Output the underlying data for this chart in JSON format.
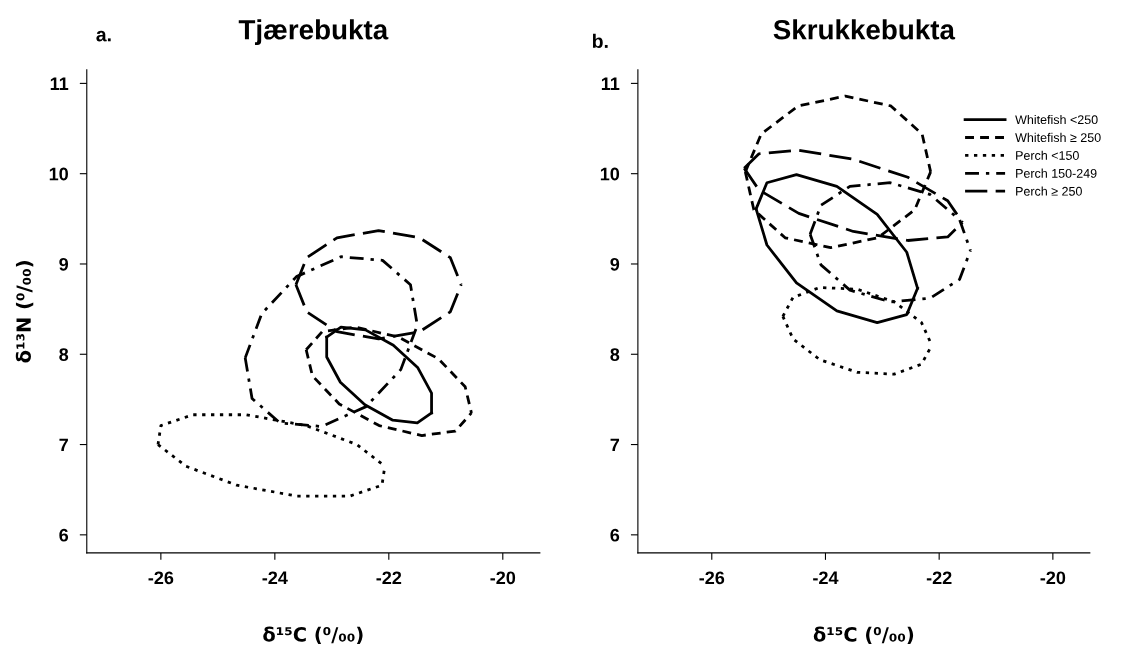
{
  "chart_data": [
    {
      "type": "line",
      "title": "Tjærebukta",
      "xlabel": "δ¹⁵C (⁰/₀₀)",
      "ylabel": "δ¹³N (⁰/₀₀)",
      "annotations": [
        "a."
      ],
      "xlim": [
        -27.3,
        -19.35
      ],
      "ylim": [
        5.8,
        11.15
      ],
      "xticks": [
        -26,
        -24,
        -22,
        -20
      ],
      "yticks": [
        6,
        7,
        8,
        9,
        10,
        11
      ],
      "grid": false,
      "legend": false,
      "marker": "none",
      "series": [
        {
          "color": "#000000",
          "line_style": "solid",
          "x": [
            -23.09,
            -22.84,
            -22.41,
            -21.92,
            -21.49,
            -21.25,
            -21.25
          ],
          "values": [
            8.19,
            8.3,
            8.27,
            8.1,
            7.85,
            7.57,
            7.35
          ]
        },
        {
          "color": "#000000",
          "line_style": "solid",
          "x": [
            -23.09,
            -23.09,
            -22.85,
            -22.42,
            -21.93,
            -21.5,
            -21.25
          ],
          "values": [
            8.19,
            7.97,
            7.69,
            7.44,
            7.27,
            7.24,
            7.35
          ]
        },
        {
          "color": "#000000",
          "line_style": "dashed",
          "x": [
            -23.45,
            -23.17,
            -22.58,
            -21.83,
            -21.13,
            -20.66,
            -20.55
          ],
          "values": [
            8.05,
            8.25,
            8.3,
            8.19,
            7.95,
            7.64,
            7.35
          ]
        },
        {
          "color": "#000000",
          "line_style": "dashed",
          "x": [
            -23.45,
            -23.34,
            -22.87,
            -22.17,
            -21.42,
            -20.83,
            -20.55
          ],
          "values": [
            8.05,
            7.76,
            7.45,
            7.21,
            7.1,
            7.15,
            7.35
          ]
        },
        {
          "color": "#000000",
          "line_style": "dotted",
          "x": [
            -26.05,
            -26.0,
            -25.44,
            -24.5,
            -23.45,
            -22.56,
            -22.07
          ],
          "values": [
            7.0,
            7.21,
            7.33,
            7.33,
            7.21,
            7.0,
            6.76
          ]
        },
        {
          "color": "#000000",
          "line_style": "dotted",
          "x": [
            -26.05,
            -25.56,
            -24.67,
            -23.62,
            -22.68,
            -22.12,
            -22.07
          ],
          "values": [
            7.0,
            6.76,
            6.55,
            6.43,
            6.43,
            6.55,
            6.76
          ]
        },
        {
          "color": "#000000",
          "line_style": "dashdot",
          "x": [
            -24.52,
            -24.23,
            -23.62,
            -22.84,
            -22.11,
            -21.62,
            -21.5
          ],
          "values": [
            7.96,
            8.45,
            8.86,
            9.08,
            9.04,
            8.77,
            8.32
          ]
        },
        {
          "color": "#000000",
          "line_style": "dashdot",
          "x": [
            -24.52,
            -24.4,
            -23.91,
            -23.18,
            -22.4,
            -21.79,
            -21.5
          ],
          "values": [
            7.96,
            7.51,
            7.24,
            7.2,
            7.42,
            7.83,
            8.32
          ]
        },
        {
          "color": "#000000",
          "line_style": "longdash",
          "x": [
            -23.63,
            -23.44,
            -22.91,
            -22.18,
            -21.46,
            -20.92,
            -20.73
          ],
          "values": [
            8.77,
            9.07,
            9.29,
            9.37,
            9.29,
            9.07,
            8.77
          ]
        },
        {
          "color": "#000000",
          "line_style": "longdash",
          "x": [
            -23.63,
            -23.44,
            -22.91,
            -22.18,
            -21.46,
            -20.92,
            -20.73
          ],
          "values": [
            8.77,
            8.47,
            8.25,
            8.17,
            8.25,
            8.47,
            8.77
          ]
        }
      ]
    },
    {
      "type": "line",
      "title": "Skrukkebukta",
      "xlabel": "δ¹⁵C (⁰/₀₀)",
      "annotations": [
        "b."
      ],
      "xlim": [
        -27.3,
        -19.35
      ],
      "ylim": [
        5.8,
        11.15
      ],
      "xticks": [
        -26,
        -24,
        -22,
        -20
      ],
      "yticks": [
        6,
        7,
        8,
        9,
        10,
        11
      ],
      "grid": false,
      "legend": "top right",
      "marker": "none",
      "series": [
        {
          "name": "Whitefish <250",
          "color": "#000000",
          "line_style": "solid",
          "x": [
            -25.22,
            -25.03,
            -24.51,
            -23.8,
            -23.09,
            -22.57,
            -22.38
          ],
          "values": [
            9.61,
            9.9,
            9.99,
            9.86,
            9.55,
            9.13,
            8.73
          ]
        },
        {
          "color": "#000000",
          "line_style": "solid",
          "x": [
            -25.22,
            -25.03,
            -24.51,
            -23.8,
            -23.09,
            -22.57,
            -22.38
          ],
          "values": [
            9.61,
            9.21,
            8.79,
            8.48,
            8.35,
            8.44,
            8.73
          ]
        },
        {
          "name": "Whitefish ≥ 250",
          "color": "#000000",
          "line_style": "dashed",
          "x": [
            -25.41,
            -25.13,
            -24.48,
            -23.65,
            -22.85,
            -22.3,
            -22.15
          ],
          "values": [
            10.02,
            10.44,
            10.75,
            10.86,
            10.75,
            10.44,
            10.02
          ]
        },
        {
          "color": "#000000",
          "line_style": "dashed",
          "x": [
            -25.41,
            -25.26,
            -24.71,
            -23.91,
            -23.08,
            -22.43,
            -22.15
          ],
          "values": [
            10.02,
            9.6,
            9.29,
            9.18,
            9.29,
            9.6,
            10.02
          ]
        },
        {
          "name": "Perch <150",
          "color": "#000000",
          "line_style": "dotted",
          "x": [
            -24.75,
            -24.57,
            -24.1,
            -23.44,
            -22.79,
            -22.31,
            -22.13
          ],
          "values": [
            8.42,
            8.63,
            8.74,
            8.72,
            8.58,
            8.35,
            8.1
          ]
        },
        {
          "color": "#000000",
          "line_style": "dotted",
          "x": [
            -24.75,
            -24.57,
            -24.1,
            -23.44,
            -22.79,
            -22.31,
            -22.13
          ],
          "values": [
            8.42,
            8.17,
            7.94,
            7.8,
            7.78,
            7.89,
            8.1
          ]
        },
        {
          "name": "Perch 150-249",
          "color": "#000000",
          "line_style": "dashdot",
          "x": [
            -24.27,
            -24.08,
            -23.57,
            -22.86,
            -22.16,
            -21.64,
            -21.45
          ],
          "values": [
            9.33,
            9.65,
            9.86,
            9.9,
            9.77,
            9.49,
            9.15
          ]
        },
        {
          "color": "#000000",
          "line_style": "dashdot",
          "x": [
            -24.27,
            -24.08,
            -23.57,
            -22.86,
            -22.16,
            -21.64,
            -21.45
          ],
          "values": [
            9.33,
            8.99,
            8.71,
            8.58,
            8.62,
            8.83,
            9.15
          ]
        },
        {
          "name": "Perch ≥ 250",
          "color": "#000000",
          "line_style": "longdash",
          "x": [
            -25.43,
            -25.17,
            -24.47,
            -23.51,
            -22.55,
            -21.85,
            -21.59
          ],
          "values": [
            10.06,
            10.22,
            10.26,
            10.16,
            9.96,
            9.7,
            9.46
          ]
        },
        {
          "color": "#000000",
          "line_style": "longdash",
          "x": [
            -25.43,
            -25.17,
            -24.47,
            -23.51,
            -22.55,
            -21.85,
            -21.59
          ],
          "values": [
            10.06,
            9.82,
            9.56,
            9.36,
            9.26,
            9.3,
            9.46
          ]
        }
      ]
    }
  ]
}
